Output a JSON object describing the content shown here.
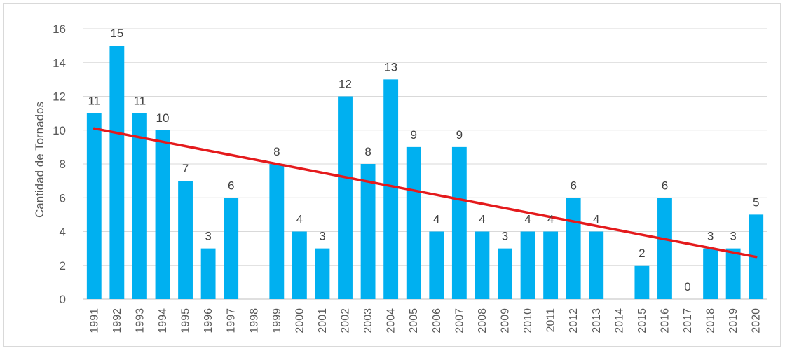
{
  "chart_data": {
    "type": "bar",
    "title": "",
    "xlabel": "",
    "ylabel": "Cantidad de Tornados",
    "ylim": [
      0,
      16
    ],
    "yticks": [
      0,
      2,
      4,
      6,
      8,
      10,
      12,
      14,
      16
    ],
    "grid": true,
    "categories": [
      "1991",
      "1992",
      "1993",
      "1994",
      "1995",
      "1996",
      "1997",
      "1998",
      "1999",
      "2000",
      "2001",
      "2002",
      "2003",
      "2004",
      "2005",
      "2006",
      "2007",
      "2008",
      "2009",
      "2010",
      "2011",
      "2012",
      "2013",
      "2014",
      "2015",
      "2016",
      "2017",
      "2018",
      "2019",
      "2020"
    ],
    "values": [
      11,
      15,
      11,
      10,
      7,
      3,
      6,
      0,
      8,
      4,
      3,
      12,
      8,
      13,
      9,
      4,
      9,
      4,
      3,
      4,
      4,
      6,
      4,
      0,
      2,
      6,
      0,
      3,
      3,
      5
    ],
    "data_labels": [
      "11",
      "15",
      "11",
      "10",
      "7",
      "3",
      "6",
      "",
      "8",
      "4",
      "3",
      "12",
      "8",
      "13",
      "9",
      "4",
      "9",
      "4",
      "3",
      "4",
      "4",
      "6",
      "4",
      "",
      "2",
      "6",
      "0",
      "3",
      "3",
      "5"
    ],
    "trendline": {
      "type": "linear",
      "start": {
        "x": "1991",
        "y": 10.1
      },
      "end": {
        "x": "2020",
        "y": 2.5
      }
    },
    "colors": {
      "bar": "#00b0f0",
      "trendline": "#e41a1c",
      "grid": "#d9d9d9",
      "text": "#595959"
    }
  }
}
